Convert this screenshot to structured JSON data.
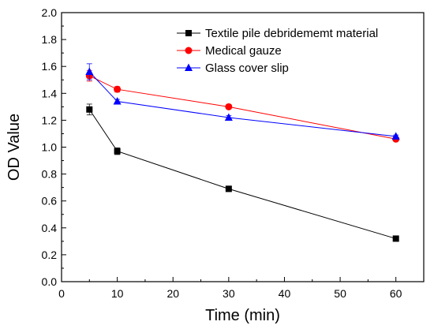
{
  "chart_data": {
    "type": "line",
    "xlabel": "Time (min)",
    "ylabel": "OD Value",
    "xlim": [
      0,
      65
    ],
    "ylim": [
      0.0,
      2.0
    ],
    "xticks": [
      "0",
      "10",
      "20",
      "30",
      "40",
      "50",
      "60"
    ],
    "yticks": [
      "0.0",
      "0.2",
      "0.4",
      "0.6",
      "0.8",
      "1.0",
      "1.2",
      "1.4",
      "1.6",
      "1.8",
      "2.0"
    ],
    "legend_position": "top-right",
    "series": [
      {
        "name": "Textile pile debridememt material",
        "color": "#000000",
        "marker": "square",
        "x": [
          5,
          10,
          30,
          60
        ],
        "y": [
          1.28,
          0.97,
          0.69,
          0.32
        ],
        "err": [
          0.04,
          0.025,
          0.02,
          0.01
        ]
      },
      {
        "name": "Medical gauze",
        "color": "#ff0000",
        "marker": "circle",
        "x": [
          5,
          10,
          30,
          60
        ],
        "y": [
          1.53,
          1.43,
          1.3,
          1.06
        ],
        "err": [
          0.04,
          0.02,
          0.015,
          0.01
        ]
      },
      {
        "name": "Glass cover slip",
        "color": "#0000ff",
        "marker": "triangle",
        "x": [
          5,
          10,
          30,
          60
        ],
        "y": [
          1.56,
          1.34,
          1.22,
          1.08
        ],
        "err": [
          0.06,
          0.015,
          0.015,
          0.01
        ]
      }
    ]
  }
}
